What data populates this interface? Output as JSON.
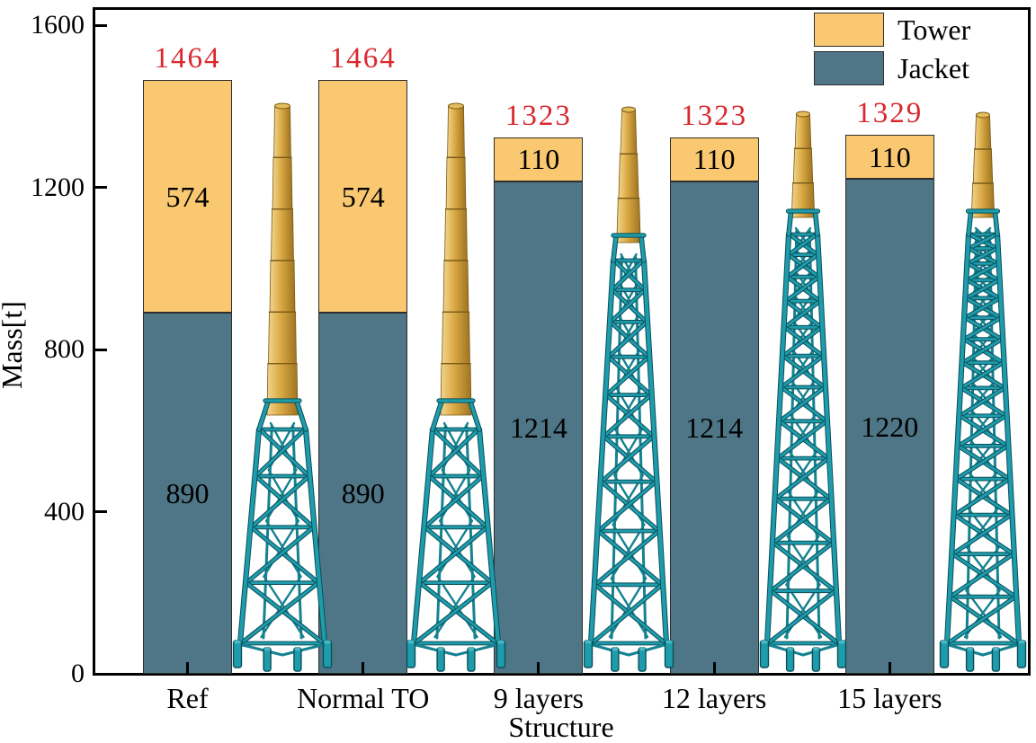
{
  "chart_data": {
    "type": "bar",
    "stacked": true,
    "title": "",
    "xlabel": "Structure",
    "ylabel": "Mass[t]",
    "categories": [
      "Ref",
      "Normal TO",
      "9 layers",
      "12 layers",
      "15 layers"
    ],
    "series": [
      {
        "name": "Jacket",
        "color": "#4E7686",
        "values": [
          890,
          890,
          1214,
          1214,
          1220
        ]
      },
      {
        "name": "Tower",
        "color": "#F9C870",
        "values": [
          574,
          574,
          110,
          110,
          110
        ]
      }
    ],
    "total_labels": [
      "1464",
      "1464",
      "1323",
      "1323",
      "1329"
    ],
    "total_label_color": "#D9282E",
    "segment_label_color": "#000000",
    "ylim": [
      0,
      1600
    ],
    "yticks": [
      "0",
      "400",
      "800",
      "1200",
      "1600"
    ],
    "grid": false,
    "legend_position": "upper right",
    "bar_border_color": "#2E2E2E"
  },
  "legend": {
    "entries": [
      {
        "label": "Tower",
        "color": "#F9C870"
      },
      {
        "label": "Jacket",
        "color": "#4E7686"
      }
    ]
  },
  "structures": [
    {
      "label": "Ref",
      "jacket_layers": 4,
      "tower_segments": 6,
      "kind": "reference-jacket-and-tower"
    },
    {
      "label": "Normal TO",
      "jacket_layers": 4,
      "tower_segments": 6,
      "kind": "reference-jacket-and-tower"
    },
    {
      "label": "9 layers",
      "jacket_layers": 9,
      "tower_segments": 3,
      "kind": "optimized-tall-jacket"
    },
    {
      "label": "12 layers",
      "jacket_layers": 12,
      "tower_segments": 3,
      "kind": "optimized-tall-jacket"
    },
    {
      "label": "15 layers",
      "jacket_layers": 15,
      "tower_segments": 3,
      "kind": "optimized-tall-jacket"
    }
  ],
  "render_colors": {
    "gold_light": "#F2D58C",
    "gold_mid": "#D9A843",
    "gold_dark": "#9E7421",
    "gold_edge": "#7A5A16",
    "teal_bright": "#1E9CAC",
    "teal_mid": "#148290",
    "teal_dark": "#0B4F59"
  }
}
